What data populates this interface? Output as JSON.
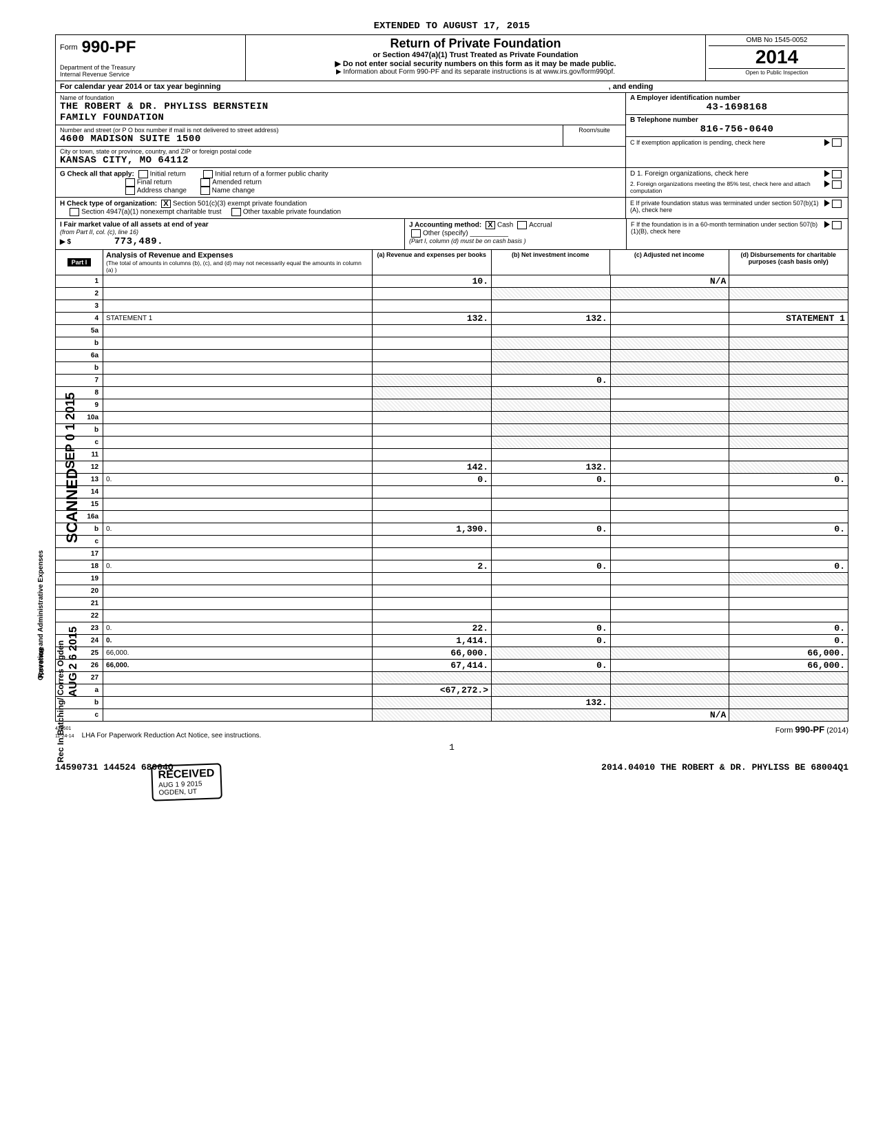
{
  "extended": "EXTENDED TO AUGUST 17, 2015",
  "header": {
    "form_word": "Form",
    "form_number": "990-PF",
    "dept": "Department of the Treasury",
    "irs": "Internal Revenue Service",
    "title": "Return of Private Foundation",
    "sub": "or Section 4947(a)(1) Trust Treated as Private Foundation",
    "warn": "▶ Do not enter social security numbers on this form as it may be made public.",
    "info": "▶ Information about Form 990-PF and its separate instructions is at www.irs.gov/form990pf.",
    "omb": "OMB No 1545-0052",
    "year": "2014",
    "inspect": "Open to Public Inspection"
  },
  "cal_year": "For calendar year 2014 or tax year beginning",
  "ending": ", and ending",
  "foundation": {
    "name_label": "Name of foundation",
    "name1": "THE ROBERT & DR. PHYLISS BERNSTEIN",
    "name2": "FAMILY FOUNDATION",
    "addr_label": "Number and street (or P O box number if mail is not delivered to street address)",
    "addr": "4600 MADISON SUITE 1500",
    "room_label": "Room/suite",
    "city_label": "City or town, state or province, country, and ZIP or foreign postal code",
    "city": "KANSAS CITY, MO   64112",
    "ein_label": "A  Employer identification number",
    "ein": "43-1698168",
    "tel_label": "B  Telephone number",
    "tel": "816-756-0640",
    "c_label": "C  If exemption application is pending, check here"
  },
  "g": {
    "label": "G  Check all that apply:",
    "initial": "Initial return",
    "initial_former": "Initial return of a former public charity",
    "final": "Final return",
    "amended": "Amended return",
    "addr_change": "Address change",
    "name_change": "Name change"
  },
  "d": {
    "d1": "D  1. Foreign organizations, check here",
    "d2": "2. Foreign organizations meeting the 85% test, check here and attach computation"
  },
  "h": {
    "label": "H  Check type of organization:",
    "s501": "Section 501(c)(3) exempt private foundation",
    "s4947": "Section 4947(a)(1) nonexempt charitable trust",
    "other": "Other taxable private foundation"
  },
  "e": {
    "e1": "E  If private foundation status was terminated under section 507(b)(1)(A), check here"
  },
  "i": {
    "label": "I  Fair market value of all assets at end of year",
    "from": "(from Part II, col. (c), line 16)",
    "arrow": "▶ $",
    "value": "773,489."
  },
  "j": {
    "label": "J  Accounting method:",
    "cash": "Cash",
    "accrual": "Accrual",
    "other": "Other (specify)",
    "note": "(Part I, column (d) must be on cash basis )"
  },
  "f": {
    "f1": "F  If the foundation is in a 60-month termination under section 507(b)(1)(B), check here"
  },
  "part1": {
    "label": "Part I",
    "title": "Analysis of Revenue and Expenses",
    "note": "(The total of amounts in columns (b), (c), and (d) may not necessarily equal the amounts in column (a) )",
    "col_a": "(a) Revenue and expenses per books",
    "col_b": "(b) Net investment income",
    "col_c": "(c) Adjusted net income",
    "col_d": "(d) Disbursements for charitable purposes (cash basis only)"
  },
  "sidebar": {
    "revenue": "Revenue",
    "expenses": "Operating and Administrative Expenses",
    "scanned": "SCANNED",
    "sep": "SEP 0 1 2015",
    "aug": "AUG 2 6 2015",
    "recbatch": "Rec In Batching/\nCorres Ogden"
  },
  "rows": [
    {
      "n": "1",
      "d": "",
      "a": "10.",
      "b": "",
      "c": "N/A"
    },
    {
      "n": "2",
      "d": "",
      "a": "",
      "b": "",
      "c": "",
      "shade_bcd": true
    },
    {
      "n": "3",
      "d": "",
      "a": "",
      "b": "",
      "c": ""
    },
    {
      "n": "4",
      "d": "STATEMENT 1",
      "a": "132.",
      "b": "132.",
      "c": ""
    },
    {
      "n": "5a",
      "d": "",
      "a": "",
      "b": "",
      "c": ""
    },
    {
      "n": "b",
      "d": "",
      "a": "",
      "b": "",
      "c": "",
      "shade_bcd": true
    },
    {
      "n": "6a",
      "d": "",
      "a": "",
      "b": "",
      "c": "",
      "shade_bcd": true
    },
    {
      "n": "b",
      "d": "",
      "a": "",
      "b": "",
      "c": "",
      "shade_bcd": true
    },
    {
      "n": "7",
      "d": "",
      "a": "",
      "b": "0.",
      "c": "",
      "shade_a": true,
      "shade_cd": true
    },
    {
      "n": "8",
      "d": "",
      "a": "",
      "b": "",
      "c": "",
      "shade_ab": true,
      "shade_d": true
    },
    {
      "n": "9",
      "d": "",
      "a": "",
      "b": "",
      "c": "",
      "shade_ab": true,
      "shade_d": true
    },
    {
      "n": "10a",
      "d": "",
      "a": "",
      "b": "",
      "c": "",
      "shade_bcd": true
    },
    {
      "n": "b",
      "d": "",
      "a": "",
      "b": "",
      "c": "",
      "shade_bcd": true
    },
    {
      "n": "c",
      "d": "",
      "a": "",
      "b": "",
      "c": "",
      "shade_b": true,
      "shade_d": true
    },
    {
      "n": "11",
      "d": "",
      "a": "",
      "b": "",
      "c": ""
    },
    {
      "n": "12",
      "d": "",
      "a": "142.",
      "b": "132.",
      "c": "",
      "sum": true,
      "shade_d": true
    },
    {
      "n": "13",
      "d": "0.",
      "a": "0.",
      "b": "0.",
      "c": ""
    },
    {
      "n": "14",
      "d": "",
      "a": "",
      "b": "",
      "c": ""
    },
    {
      "n": "15",
      "d": "",
      "a": "",
      "b": "",
      "c": ""
    },
    {
      "n": "16a",
      "d": "",
      "a": "",
      "b": "",
      "c": ""
    },
    {
      "n": "b",
      "d": "0.",
      "a": "1,390.",
      "b": "0.",
      "c": ""
    },
    {
      "n": "c",
      "d": "",
      "a": "",
      "b": "",
      "c": ""
    },
    {
      "n": "17",
      "d": "",
      "a": "",
      "b": "",
      "c": ""
    },
    {
      "n": "18",
      "d": "0.",
      "a": "2.",
      "b": "0.",
      "c": ""
    },
    {
      "n": "19",
      "d": "",
      "a": "",
      "b": "",
      "c": "",
      "shade_d": true
    },
    {
      "n": "20",
      "d": "",
      "a": "",
      "b": "",
      "c": ""
    },
    {
      "n": "21",
      "d": "",
      "a": "",
      "b": "",
      "c": ""
    },
    {
      "n": "22",
      "d": "",
      "a": "",
      "b": "",
      "c": ""
    },
    {
      "n": "23",
      "d": "0.",
      "a": "22.",
      "b": "0.",
      "c": ""
    },
    {
      "n": "24",
      "d": "0.",
      "a": "1,414.",
      "b": "0.",
      "c": "",
      "sum": true
    },
    {
      "n": "25",
      "d": "66,000.",
      "a": "66,000.",
      "b": "",
      "c": "",
      "shade_bc": true
    },
    {
      "n": "26",
      "d": "66,000.",
      "a": "67,414.",
      "b": "0.",
      "c": "",
      "sum": true
    },
    {
      "n": "27",
      "d": "",
      "a": "",
      "b": "",
      "c": "",
      "shade_all": true
    },
    {
      "n": "a",
      "d": "",
      "a": "<67,272.>",
      "b": "",
      "c": "",
      "shade_bcd": true
    },
    {
      "n": "b",
      "d": "",
      "a": "",
      "b": "132.",
      "c": "",
      "shade_a": true,
      "shade_cd": true
    },
    {
      "n": "c",
      "d": "",
      "a": "",
      "b": "",
      "c": "N/A",
      "shade_ab": true,
      "shade_d": true
    }
  ],
  "stamp": {
    "received": "RECEIVED",
    "date": "AUG 1 9 2015",
    "ogden": "OGDEN, UT"
  },
  "footer": {
    "code": "423501\n11-24-14",
    "lha": "LHA   For Paperwork Reduction Act Notice, see instructions.",
    "form": "Form",
    "formno": "990-PF",
    "formyr": "(2014)",
    "page": "1",
    "bottom_left": "14590731 144524 68004Q",
    "bottom_right": "2014.04010 THE ROBERT & DR. PHYLISS BE 68004Q1"
  }
}
